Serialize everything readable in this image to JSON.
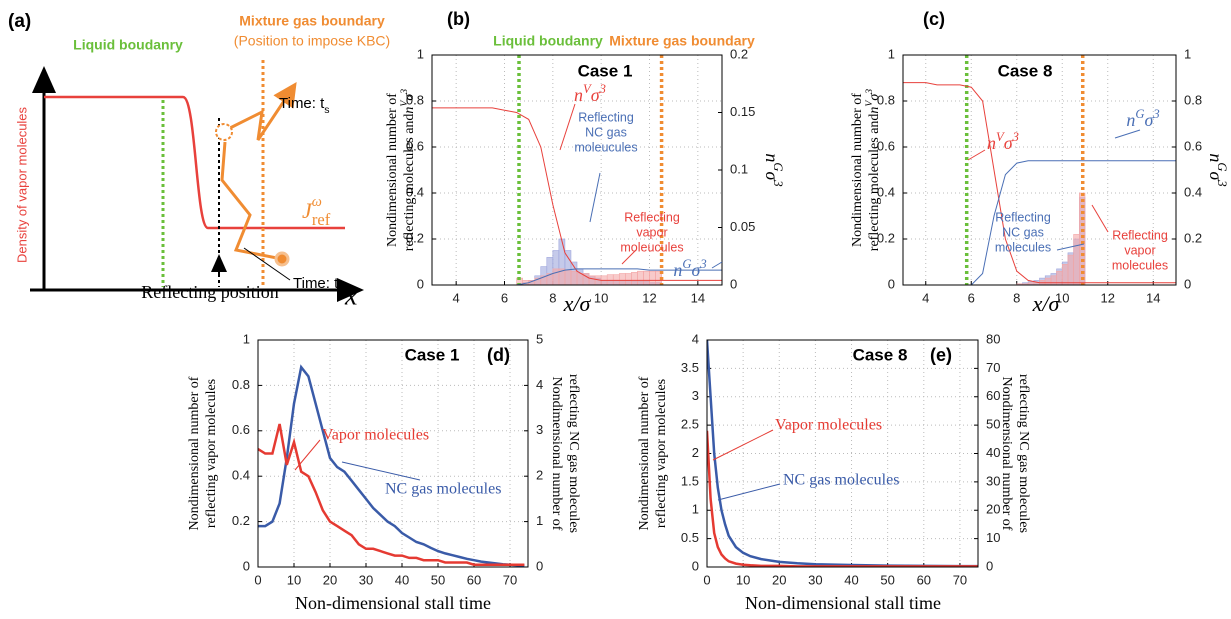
{
  "schematic": {
    "panel_label": "(a)",
    "liquid": "Liquid boudanry",
    "mixture": "Mixture gas boundary",
    "kbc": "(Position to impose KBC)",
    "time_s": [
      "Time: t",
      "s"
    ],
    "time_0": [
      "Time: t",
      "0"
    ],
    "flux": [
      "J",
      "ω",
      "ref"
    ],
    "ylabel": "Density of vapor molecules",
    "xlabel": "Reflecting position",
    "axis": "x"
  },
  "chart_data": [
    {
      "type": "line",
      "panel_label": "(b)",
      "title": "Case 1",
      "grid": true,
      "x": [
        3,
        3.5,
        4,
        4.5,
        5,
        5.5,
        6,
        6.5,
        7,
        7.5,
        8,
        8.5,
        9,
        9.5,
        10,
        10.5,
        11,
        11.5,
        12,
        12.5,
        13,
        13.5,
        14,
        14.5,
        15
      ],
      "xlim": [
        3,
        15
      ],
      "xticks": [
        4,
        6,
        8,
        10,
        12,
        14
      ],
      "ylim": [
        0,
        1
      ],
      "yticks": [
        0,
        0.2,
        0.4,
        0.6,
        0.8,
        1
      ],
      "y2lim": [
        0,
        0.2
      ],
      "y2ticks": [
        0,
        0.05,
        0.1,
        0.15,
        0.2
      ],
      "xlabel": "x/σ",
      "ylabel": [
        "Nondimensional number of",
        "reflecting molecules and"
      ],
      "ylabel_math": [
        "n",
        "V",
        "σ",
        "3"
      ],
      "y2label_math": [
        "n",
        "G",
        "σ",
        "3"
      ],
      "vlines": [
        {
          "x": 6.6,
          "color": "#6abf3a",
          "label": "Liquid boudanry"
        },
        {
          "x": 12.5,
          "color": "#f08c32",
          "label": "Mixture gas boundary"
        }
      ],
      "series": [
        {
          "color": "#e8413c",
          "axis": "y",
          "values": [
            0.77,
            0.77,
            0.77,
            0.77,
            0.77,
            0.77,
            0.76,
            0.75,
            0.72,
            0.6,
            0.35,
            0.14,
            0.06,
            0.03,
            0.02,
            0.02,
            0.02,
            0.02,
            0.02,
            0.02,
            0.02,
            0.02,
            0.02,
            0.02,
            0.02
          ]
        },
        {
          "color": "#4a6fb5",
          "axis": "y2",
          "values": [
            0,
            0,
            0,
            0,
            0,
            0,
            0,
            0,
            0.002,
            0.006,
            0.01,
            0.013,
            0.014,
            0.014,
            0.014,
            0.014,
            0.014,
            0.014,
            0.013,
            0.013,
            0.013,
            0.013,
            0.013,
            0.013,
            0.013
          ]
        }
      ],
      "histogram": {
        "bins": [
          6.5,
          6.75,
          7,
          7.25,
          7.5,
          7.75,
          8,
          8.25,
          8.5,
          8.75,
          9,
          9.25,
          9.5,
          9.75,
          10,
          10.25,
          10.5,
          10.75,
          11,
          11.25,
          11.5,
          11.75,
          12,
          12.25,
          12.5
        ],
        "series": [
          {
            "color": "#9ea6dc",
            "values": [
              0.005,
              0.01,
              0.02,
              0.04,
              0.08,
              0.12,
              0.15,
              0.2,
              0.15,
              0.1,
              0.07,
              0.05,
              0.04,
              0.03,
              0.02,
              0.02,
              0.02,
              0.02,
              0.02,
              0.015,
              0.015,
              0.015,
              0.01,
              0.01
            ]
          },
          {
            "color": "#f3a6a6",
            "values": [
              0.03,
              0.02,
              0.02,
              0.03,
              0.04,
              0.05,
              0.07,
              0.07,
              0.065,
              0.06,
              0.05,
              0.05,
              0.04,
              0.04,
              0.04,
              0.045,
              0.045,
              0.05,
              0.05,
              0.055,
              0.06,
              0.06,
              0.06,
              0.06
            ]
          }
        ]
      },
      "annotations": [
        {
          "math": [
            "n",
            "V",
            "σ",
            "3"
          ],
          "color": "#e8413c"
        },
        {
          "lines": [
            "Reflecting",
            "NC gas",
            "moleucules"
          ],
          "color": "#4a6fb5"
        },
        {
          "lines": [
            "Reflecting",
            "vapor",
            "moleucules"
          ],
          "color": "#e8413c"
        },
        {
          "math": [
            "n",
            "G",
            "σ",
            "3"
          ],
          "color": "#4a6fb5"
        }
      ]
    },
    {
      "type": "line",
      "panel_label": "(c)",
      "title": "Case 8",
      "grid": true,
      "x": [
        3,
        3.5,
        4,
        4.5,
        5,
        5.5,
        6,
        6.5,
        7,
        7.5,
        8,
        8.5,
        9,
        9.5,
        10,
        10.5,
        11,
        11.5,
        12,
        12.5,
        13,
        13.5,
        14,
        14.5,
        15
      ],
      "xlim": [
        3,
        15
      ],
      "xticks": [
        4,
        6,
        8,
        10,
        12,
        14
      ],
      "ylim": [
        0,
        1
      ],
      "yticks": [
        0,
        0.2,
        0.4,
        0.6,
        0.8,
        1
      ],
      "y2lim": [
        0,
        1
      ],
      "y2ticks": [
        0,
        0.2,
        0.4,
        0.6,
        0.8,
        1
      ],
      "xlabel": "x/σ",
      "ylabel": [
        "Nondimensional number of",
        "reflecting molecules and"
      ],
      "ylabel_math": [
        "n",
        "V",
        "σ",
        "3"
      ],
      "y2label_math": [
        "n",
        "G",
        "σ",
        "3"
      ],
      "vlines": [
        {
          "x": 5.8,
          "color": "#6abf3a"
        },
        {
          "x": 10.9,
          "color": "#f08c32"
        }
      ],
      "series": [
        {
          "color": "#e8413c",
          "axis": "y",
          "values": [
            0.88,
            0.88,
            0.88,
            0.87,
            0.87,
            0.87,
            0.86,
            0.8,
            0.5,
            0.2,
            0.06,
            0.02,
            0.01,
            0.01,
            0.01,
            0.01,
            0.01,
            0.01,
            0.01,
            0.01,
            0.01,
            0.01,
            0.01,
            0.01,
            0.01
          ]
        },
        {
          "color": "#4a6fb5",
          "axis": "y2",
          "values": [
            0,
            0,
            0,
            0,
            0,
            0,
            0,
            0.05,
            0.3,
            0.48,
            0.53,
            0.54,
            0.54,
            0.54,
            0.54,
            0.54,
            0.54,
            0.54,
            0.54,
            0.54,
            0.54,
            0.54,
            0.54,
            0.54,
            0.54
          ]
        }
      ],
      "histogram": {
        "bins": [
          8,
          8.25,
          8.5,
          8.75,
          9,
          9.25,
          9.5,
          9.75,
          10,
          10.25,
          10.5,
          10.75,
          11
        ],
        "series": [
          {
            "color": "#9ea6dc",
            "values": [
              0.005,
              0.01,
              0.015,
              0.02,
              0.03,
              0.04,
              0.05,
              0.07,
              0.1,
              0.14,
              0.2,
              0.38
            ]
          },
          {
            "color": "#f3a6a6",
            "values": [
              0.005,
              0.005,
              0.01,
              0.01,
              0.02,
              0.03,
              0.04,
              0.06,
              0.09,
              0.13,
              0.22,
              0.4
            ]
          }
        ]
      },
      "annotations": [
        {
          "math": [
            "n",
            "V",
            "σ",
            "3"
          ],
          "color": "#e8413c"
        },
        {
          "math": [
            "n",
            "G",
            "σ",
            "3"
          ],
          "color": "#4a6fb5"
        },
        {
          "lines": [
            "Reflecting",
            "NC gas",
            "molecules"
          ],
          "color": "#4a6fb5"
        },
        {
          "lines": [
            "Reflecting",
            "vapor",
            "molecules"
          ],
          "color": "#e8413c"
        }
      ]
    },
    {
      "type": "line",
      "panel_label": "(d)",
      "title": "Case 1",
      "grid": true,
      "x": [
        0,
        2,
        4,
        6,
        8,
        10,
        12,
        14,
        16,
        18,
        20,
        22,
        24,
        26,
        28,
        30,
        32,
        34,
        36,
        38,
        40,
        42,
        44,
        46,
        48,
        50,
        52,
        54,
        56,
        58,
        60,
        62,
        64,
        66,
        68,
        70,
        72,
        74
      ],
      "xlim": [
        0,
        75
      ],
      "xticks": [
        0,
        10,
        20,
        30,
        40,
        50,
        60,
        70
      ],
      "ylim": [
        0,
        1
      ],
      "yticks": [
        0,
        0.2,
        0.4,
        0.6,
        0.8,
        1
      ],
      "y2lim": [
        0,
        5
      ],
      "y2ticks": [
        0,
        1,
        2,
        3,
        4,
        5
      ],
      "xlabel": "Non-dimensional stall time",
      "ylabel": [
        "Nondimensional number of",
        "reflecting vapor molecules"
      ],
      "y2label": [
        "Nondimensional number of",
        "reflecting NC gas molecules"
      ],
      "series": [
        {
          "color": "#3a5ba8",
          "axis": "y2",
          "values": [
            0.9,
            0.9,
            1.0,
            1.4,
            2.4,
            3.6,
            4.4,
            4.2,
            3.6,
            3.0,
            2.4,
            2.2,
            2.1,
            1.9,
            1.7,
            1.5,
            1.3,
            1.15,
            1.0,
            0.9,
            0.75,
            0.65,
            0.55,
            0.5,
            0.42,
            0.35,
            0.3,
            0.26,
            0.22,
            0.18,
            0.15,
            0.12,
            0.1,
            0.08,
            0.06,
            0.05,
            0.04,
            0.03
          ]
        },
        {
          "color": "#e53a32",
          "axis": "y",
          "values": [
            0.52,
            0.5,
            0.5,
            0.63,
            0.45,
            0.55,
            0.42,
            0.4,
            0.33,
            0.25,
            0.2,
            0.18,
            0.16,
            0.14,
            0.1,
            0.08,
            0.08,
            0.07,
            0.06,
            0.05,
            0.05,
            0.04,
            0.04,
            0.03,
            0.03,
            0.03,
            0.02,
            0.02,
            0.02,
            0.02,
            0.01,
            0.01,
            0.01,
            0.01,
            0.01,
            0.01,
            0.01,
            0.01
          ]
        }
      ],
      "annotations": [
        {
          "lines": [
            "Vapor molecules"
          ],
          "color": "#e53a32"
        },
        {
          "lines": [
            "NC gas molecules"
          ],
          "color": "#3a5ba8"
        }
      ]
    },
    {
      "type": "line",
      "panel_label": "(e)",
      "title": "Case 8",
      "grid": true,
      "x": [
        0,
        1,
        2,
        3,
        4,
        5,
        6,
        8,
        10,
        12,
        15,
        20,
        25,
        30,
        40,
        50,
        60,
        70,
        75
      ],
      "xlim": [
        0,
        75
      ],
      "xticks": [
        0,
        10,
        20,
        30,
        40,
        50,
        60,
        70
      ],
      "ylim": [
        0,
        4
      ],
      "yticks": [
        0,
        0.5,
        1,
        1.5,
        2,
        2.5,
        3,
        3.5,
        4
      ],
      "y2lim": [
        0,
        80
      ],
      "y2ticks": [
        0,
        10,
        20,
        30,
        40,
        50,
        60,
        70,
        80
      ],
      "xlabel": "Non-dimensional stall time",
      "ylabel": [
        "Nondimensional number of",
        "reflecting vapor molecules"
      ],
      "y2label": [
        "Nondimensional number of",
        "reflecting NC gas molecules"
      ],
      "series": [
        {
          "color": "#3a5ba8",
          "axis": "y2",
          "values": [
            80,
            60,
            40,
            28,
            20,
            15,
            11,
            7,
            5,
            3.8,
            2.8,
            1.8,
            1.3,
            1.0,
            0.7,
            0.5,
            0.4,
            0.3,
            0.3
          ]
        },
        {
          "color": "#e53a32",
          "axis": "y",
          "values": [
            2.4,
            1.2,
            0.6,
            0.35,
            0.22,
            0.15,
            0.1,
            0.06,
            0.04,
            0.03,
            0.02,
            0.02,
            0.01,
            0.01,
            0.01,
            0.01,
            0.01,
            0.01,
            0.01
          ]
        }
      ],
      "annotations": [
        {
          "lines": [
            "Vapor molecules"
          ],
          "color": "#e53a32"
        },
        {
          "lines": [
            "NC gas molecules"
          ],
          "color": "#3a5ba8"
        }
      ]
    }
  ]
}
